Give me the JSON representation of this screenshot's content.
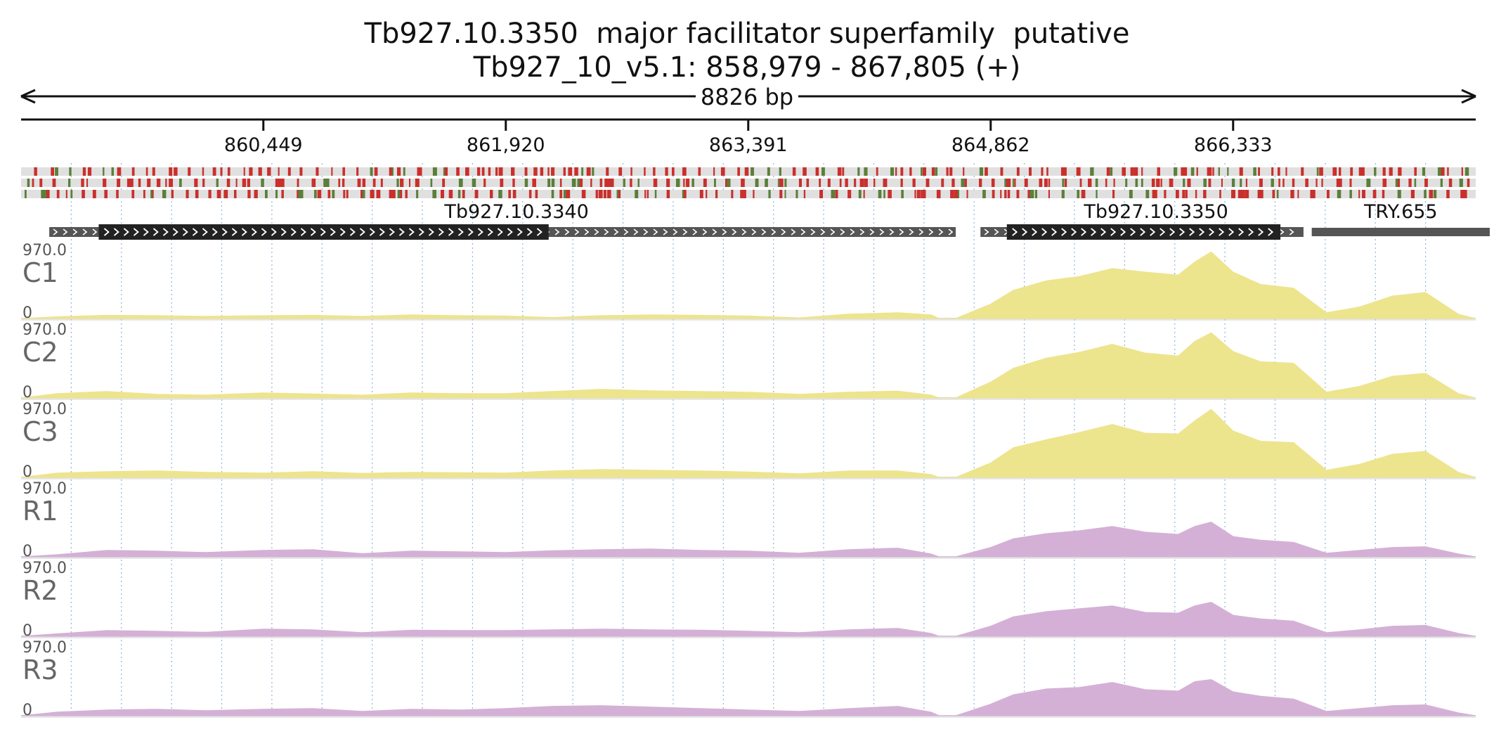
{
  "title": "Tb927.10.3350  major facilitator superfamily  putative",
  "subtitle": "Tb927_10_v5.1: 858,979 - 867,805 (+)",
  "chart_data": {
    "type": "area",
    "region": {
      "chrom": "Tb927_10_v5.1",
      "start": 858979,
      "end": 867805,
      "strand": "+",
      "length_label": "8826 bp"
    },
    "x_ticks": [
      {
        "value": 860449,
        "label": "860,449"
      },
      {
        "value": 861920,
        "label": "861,920"
      },
      {
        "value": 863391,
        "label": "863,391"
      },
      {
        "value": 864862,
        "label": "864,862"
      },
      {
        "value": 866333,
        "label": "866,333"
      }
    ],
    "genes": [
      {
        "name": "Tb927.10.3340",
        "span": [
          859150,
          864650
        ],
        "cds": [
          859450,
          862180
        ],
        "strand": "+"
      },
      {
        "name": "Tb927.10.3350",
        "span": [
          864800,
          866760
        ],
        "cds": [
          864960,
          866620
        ],
        "strand": "+"
      },
      {
        "name": "TRY.655",
        "span": [
          866810,
          867890
        ],
        "strand": ""
      }
    ],
    "ylim": [
      0,
      970.0
    ],
    "y_max_label": "970.0",
    "y_min_label": "0",
    "profile_x": [
      858979,
      859200,
      859500,
      859800,
      860100,
      860449,
      860750,
      861050,
      861350,
      861650,
      861920,
      862200,
      862500,
      862800,
      863100,
      863391,
      863700,
      864000,
      864300,
      864500,
      864550,
      864650,
      864862,
      865000,
      865200,
      865400,
      865600,
      865800,
      866000,
      866100,
      866200,
      866333,
      866500,
      866700,
      866900,
      867100,
      867300,
      867500,
      867700,
      867805
    ],
    "series": [
      {
        "name": "C1",
        "color": "#ede48e",
        "values": [
          0,
          25,
          45,
          40,
          30,
          40,
          45,
          30,
          50,
          40,
          35,
          15,
          40,
          50,
          45,
          35,
          10,
          60,
          80,
          50,
          0,
          0,
          200,
          390,
          520,
          580,
          690,
          640,
          600,
          780,
          920,
          640,
          470,
          420,
          80,
          160,
          310,
          360,
          60,
          0
        ]
      },
      {
        "name": "C2",
        "color": "#ede48e",
        "values": [
          0,
          60,
          90,
          50,
          40,
          70,
          55,
          40,
          70,
          60,
          60,
          90,
          120,
          100,
          90,
          80,
          50,
          80,
          95,
          40,
          0,
          0,
          220,
          410,
          550,
          630,
          740,
          620,
          580,
          780,
          900,
          640,
          500,
          480,
          80,
          160,
          300,
          340,
          60,
          0
        ]
      },
      {
        "name": "C3",
        "color": "#ede48e",
        "values": [
          0,
          60,
          80,
          90,
          70,
          60,
          80,
          55,
          70,
          65,
          60,
          90,
          110,
          100,
          90,
          75,
          50,
          90,
          90,
          40,
          0,
          0,
          200,
          410,
          520,
          620,
          730,
          610,
          600,
          780,
          940,
          640,
          500,
          480,
          100,
          180,
          320,
          360,
          70,
          0
        ]
      },
      {
        "name": "R1",
        "color": "#d4b0d6",
        "values": [
          0,
          30,
          90,
          80,
          60,
          90,
          100,
          45,
          80,
          70,
          60,
          85,
          100,
          110,
          90,
          80,
          50,
          100,
          120,
          40,
          0,
          0,
          130,
          250,
          320,
          360,
          420,
          340,
          310,
          420,
          480,
          280,
          230,
          200,
          50,
          90,
          130,
          140,
          40,
          0
        ]
      },
      {
        "name": "R2",
        "color": "#d4b0d6",
        "values": [
          0,
          35,
          80,
          70,
          55,
          100,
          90,
          50,
          85,
          80,
          80,
          90,
          100,
          90,
          85,
          70,
          50,
          90,
          110,
          40,
          0,
          0,
          140,
          270,
          340,
          380,
          420,
          330,
          320,
          420,
          470,
          290,
          240,
          210,
          50,
          90,
          140,
          150,
          40,
          0
        ]
      },
      {
        "name": "R3",
        "color": "#d4b0d6",
        "values": [
          0,
          50,
          80,
          90,
          70,
          90,
          100,
          60,
          90,
          80,
          100,
          130,
          140,
          120,
          100,
          80,
          60,
          100,
          130,
          50,
          0,
          0,
          160,
          290,
          370,
          390,
          460,
          360,
          340,
          470,
          500,
          330,
          270,
          230,
          60,
          100,
          140,
          150,
          40,
          0
        ]
      }
    ],
    "grid": true,
    "tick_colors": [
      "#c9302c",
      "#5b7f3a",
      "#e0e0e0"
    ]
  }
}
